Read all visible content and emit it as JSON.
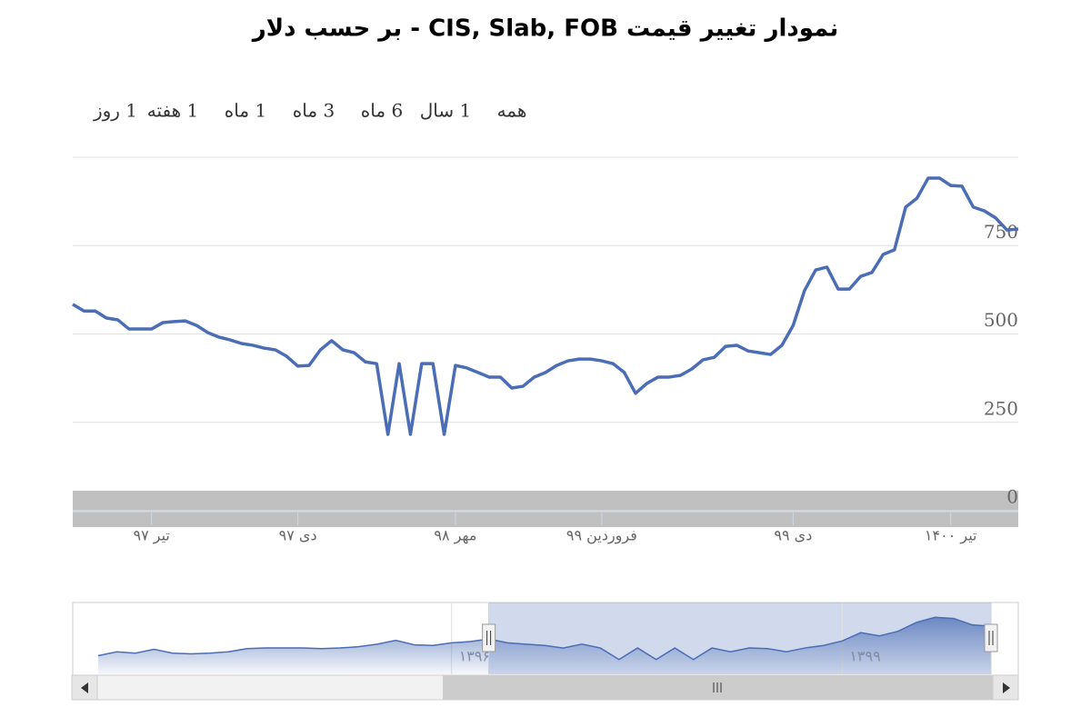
{
  "chart_data": {
    "type": "line",
    "title": "نمودار تغییر قیمت CIS, Slab, FOB - بر حسب دلار",
    "range_buttons": [
      "1 روز",
      "1 هفته",
      "1 ماه",
      "3 ماه",
      "6 ماه",
      "1 سال",
      "همه"
    ],
    "series": [
      {
        "name": "CIS, Slab, FOB",
        "color": "#4a6db5",
        "values": [
          584,
          565,
          565,
          545,
          540,
          514,
          514,
          514,
          532,
          535,
          537,
          524,
          504,
          491,
          483,
          473,
          468,
          460,
          455,
          437,
          409,
          411,
          455,
          481,
          455,
          447,
          421,
          416,
          216,
          416,
          216,
          416,
          416,
          216,
          411,
          404,
          391,
          378,
          378,
          347,
          352,
          378,
          391,
          411,
          424,
          429,
          429,
          424,
          416,
          391,
          332,
          360,
          378,
          378,
          383,
          401,
          427,
          434,
          465,
          468,
          452,
          447,
          442,
          468,
          524,
          622,
          681,
          689,
          627,
          627,
          663,
          674,
          725,
          738,
          859,
          884,
          941,
          941,
          920,
          918,
          859,
          848,
          828,
          794,
          797
        ]
      }
    ],
    "xticks": [
      {
        "value": 7,
        "label": "تیر ۹۷"
      },
      {
        "value": 20,
        "label": "دی ۹۷"
      },
      {
        "value": 34,
        "label": "مهر ۹۸"
      },
      {
        "value": 47,
        "label": "فروردین ۹۹"
      },
      {
        "value": 64,
        "label": "دی ۹۹"
      },
      {
        "value": 78,
        "label": "تیر ۱۴۰۰"
      }
    ],
    "ylim": [
      0,
      1000
    ],
    "yticks": [
      0,
      250,
      500,
      750
    ],
    "grid": true,
    "navigator": {
      "values": [
        305,
        368,
        347,
        410,
        347,
        336,
        347,
        368,
        420,
        431,
        431,
        431,
        420,
        431,
        452,
        494,
        557,
        483,
        473,
        515,
        536,
        578,
        515,
        494,
        473,
        431,
        494,
        431,
        242,
        431,
        242,
        431,
        242,
        431,
        368,
        431,
        420,
        368,
        431,
        473,
        546,
        683,
        630,
        704,
        851,
        935,
        914,
        809,
        788
      ],
      "labels": [
        {
          "value": 19,
          "label": "۱۳۹۶"
        },
        {
          "value": 40,
          "label": "۱۳۹۹"
        }
      ],
      "range": [
        21,
        48
      ]
    }
  }
}
